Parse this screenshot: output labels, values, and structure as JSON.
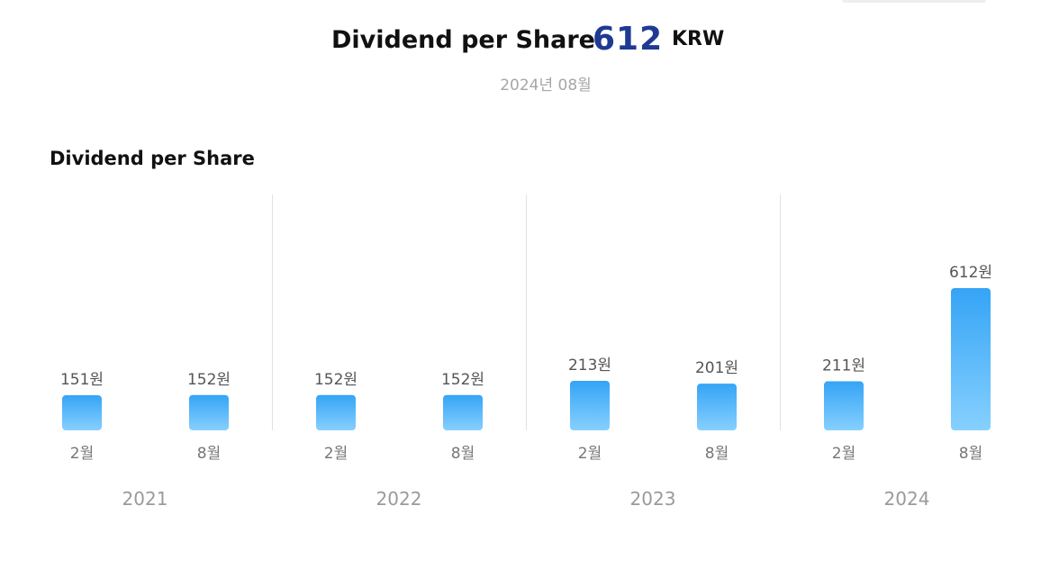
{
  "header": {
    "title": "Dividend per Share",
    "value": "612",
    "unit": "KRW",
    "date": "2024년 08월"
  },
  "chart_data": {
    "type": "bar",
    "title": "Dividend per Share",
    "unit_suffix": "원",
    "groups": [
      {
        "year": "2021",
        "bars": [
          {
            "month": "2월",
            "value": 151
          },
          {
            "month": "8월",
            "value": 152
          }
        ]
      },
      {
        "year": "2022",
        "bars": [
          {
            "month": "2월",
            "value": 152
          },
          {
            "month": "8월",
            "value": 152
          }
        ]
      },
      {
        "year": "2023",
        "bars": [
          {
            "month": "2월",
            "value": 213
          },
          {
            "month": "8월",
            "value": 201
          }
        ]
      },
      {
        "year": "2024",
        "bars": [
          {
            "month": "2월",
            "value": 211
          },
          {
            "month": "8월",
            "value": 612
          }
        ]
      }
    ],
    "bar_color": "#3aa8f6",
    "grid": false,
    "legend": "none"
  }
}
